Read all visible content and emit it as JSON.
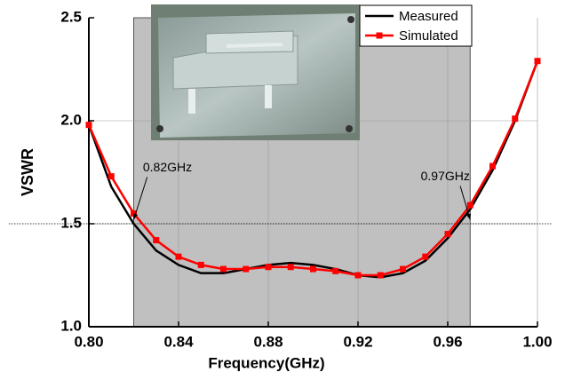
{
  "chart_data": {
    "type": "line",
    "x_label": "Frequency(GHz)",
    "y_label": "VSWR",
    "x": [
      0.8,
      0.81,
      0.82,
      0.83,
      0.84,
      0.85,
      0.86,
      0.87,
      0.88,
      0.89,
      0.9,
      0.91,
      0.92,
      0.93,
      0.94,
      0.95,
      0.96,
      0.97,
      0.98,
      0.99,
      1.0
    ],
    "series": [
      {
        "name": "Measured",
        "color": "#000000",
        "values": [
          1.98,
          1.68,
          1.5,
          1.37,
          1.3,
          1.26,
          1.26,
          1.28,
          1.3,
          1.31,
          1.3,
          1.28,
          1.25,
          1.24,
          1.26,
          1.32,
          1.43,
          1.57,
          1.76,
          2.0,
          2.29
        ]
      },
      {
        "name": "Simulated",
        "color": "#ff0000",
        "marker": "square",
        "values": [
          1.98,
          1.73,
          1.55,
          1.42,
          1.34,
          1.3,
          1.28,
          1.28,
          1.29,
          1.29,
          1.28,
          1.27,
          1.25,
          1.25,
          1.28,
          1.34,
          1.45,
          1.59,
          1.78,
          2.01,
          2.29
        ]
      }
    ],
    "xlim": [
      0.8,
      1.0
    ],
    "xticks": [
      {
        "value": 0.8,
        "label": "0.80"
      },
      {
        "value": 0.84,
        "label": "0.84"
      },
      {
        "value": 0.88,
        "label": "0.88"
      },
      {
        "value": 0.92,
        "label": "0.92"
      },
      {
        "value": 0.96,
        "label": "0.96"
      },
      {
        "value": 1.0,
        "label": "1.00"
      }
    ],
    "ylim": [
      1.0,
      2.5
    ],
    "yticks": [
      {
        "value": 1.0,
        "label": "1.0"
      },
      {
        "value": 1.5,
        "label": "1.5"
      },
      {
        "value": 2.0,
        "label": "2.0"
      },
      {
        "value": 2.5,
        "label": "2.5"
      }
    ],
    "grid": true,
    "shaded_range": [
      0.82,
      0.97
    ],
    "reference_line": 1.5,
    "annotations": [
      {
        "text": "0.82GHz",
        "x": 0.82,
        "y": 1.52
      },
      {
        "text": "0.97GHz",
        "x": 0.97,
        "y": 1.52
      }
    ],
    "legend": "top-right"
  }
}
